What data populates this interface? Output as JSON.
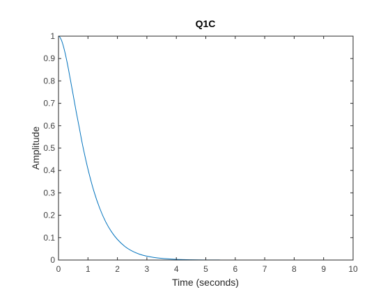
{
  "chart_data": {
    "type": "line",
    "title": "Q1C",
    "xlabel": "Time (seconds)",
    "ylabel": "Amplitude",
    "xlim": [
      0,
      10
    ],
    "ylim": [
      0,
      1
    ],
    "xticks": [
      "0",
      "1",
      "2",
      "3",
      "4",
      "5",
      "6",
      "7",
      "8",
      "9",
      "10"
    ],
    "yticks": [
      "0",
      "0.1",
      "0.2",
      "0.3",
      "0.4",
      "0.5",
      "0.6",
      "0.7",
      "0.8",
      "0.9",
      "1"
    ],
    "grid": false,
    "line_color": "#0072BD",
    "axis_color": "#262626",
    "series": [
      {
        "x": [
          0,
          0.1,
          0.2,
          0.3,
          0.4,
          0.5,
          0.6,
          0.7,
          0.8,
          0.9,
          1.0,
          1.2,
          1.4,
          1.6,
          1.8,
          2.0,
          2.25,
          2.5,
          2.75,
          3.0,
          3.5,
          4.0,
          4.5,
          5.0,
          5.5,
          6.0,
          7.0,
          8.0,
          9.0,
          10.0
        ],
        "y": [
          1.0,
          0.982,
          0.938,
          0.878,
          0.808,
          0.736,
          0.663,
          0.595,
          0.525,
          0.463,
          0.406,
          0.308,
          0.231,
          0.171,
          0.126,
          0.092,
          0.061,
          0.04,
          0.026,
          0.017,
          0.0072,
          0.003,
          0.0012,
          0.0005,
          0.0002,
          0.0001,
          0.0,
          0.0,
          0.0,
          0.0
        ]
      }
    ]
  }
}
